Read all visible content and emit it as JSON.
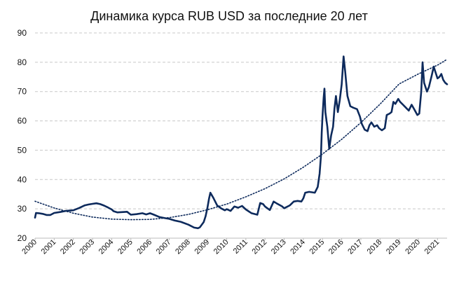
{
  "chart_data": {
    "type": "line",
    "title": "Динамика курса RUB USD за последние 20 лет",
    "xlabel": "",
    "ylabel": "",
    "ylim": [
      20,
      90
    ],
    "yticks": [
      "20",
      "30",
      "40",
      "50",
      "60",
      "70",
      "80",
      "90"
    ],
    "xlim": [
      2000,
      2021.5
    ],
    "xticks": [
      "2000",
      "2001",
      "2002",
      "2003",
      "2004",
      "2005",
      "2006",
      "2007",
      "2008",
      "2009",
      "2010",
      "2011",
      "2012",
      "2013",
      "2014",
      "2015",
      "2016",
      "2017",
      "2018",
      "2019",
      "2020",
      "2021"
    ],
    "grid": true,
    "legend": "none",
    "colors": {
      "series": "#0d2a5c",
      "trend": "#0d2a5c",
      "grid": "#c8c8c8"
    },
    "series": [
      {
        "style": "solid",
        "points": [
          [
            2000.0,
            27.0
          ],
          [
            2000.05,
            28.6
          ],
          [
            2000.2,
            28.5
          ],
          [
            2000.4,
            28.3
          ],
          [
            2000.6,
            27.9
          ],
          [
            2000.8,
            27.9
          ],
          [
            2001.0,
            28.6
          ],
          [
            2001.3,
            28.9
          ],
          [
            2001.6,
            29.3
          ],
          [
            2002.0,
            29.5
          ],
          [
            2002.3,
            30.3
          ],
          [
            2002.6,
            31.2
          ],
          [
            2002.8,
            31.5
          ],
          [
            2003.0,
            31.7
          ],
          [
            2003.2,
            31.9
          ],
          [
            2003.4,
            31.6
          ],
          [
            2003.6,
            31.1
          ],
          [
            2003.8,
            30.5
          ],
          [
            2004.0,
            29.8
          ],
          [
            2004.1,
            29.2
          ],
          [
            2004.3,
            28.8
          ],
          [
            2004.6,
            28.9
          ],
          [
            2004.8,
            29.0
          ],
          [
            2005.0,
            28.0
          ],
          [
            2005.3,
            28.2
          ],
          [
            2005.6,
            28.5
          ],
          [
            2005.8,
            28.1
          ],
          [
            2006.0,
            28.5
          ],
          [
            2006.2,
            28.0
          ],
          [
            2006.5,
            27.2
          ],
          [
            2006.8,
            26.8
          ],
          [
            2007.0,
            26.6
          ],
          [
            2007.3,
            26.0
          ],
          [
            2007.6,
            25.6
          ],
          [
            2008.0,
            24.6
          ],
          [
            2008.3,
            23.6
          ],
          [
            2008.5,
            23.4
          ],
          [
            2008.6,
            23.7
          ],
          [
            2008.8,
            25.5
          ],
          [
            2008.9,
            27.5
          ],
          [
            2009.0,
            30.5
          ],
          [
            2009.08,
            33.5
          ],
          [
            2009.15,
            35.5
          ],
          [
            2009.3,
            33.8
          ],
          [
            2009.5,
            31.2
          ],
          [
            2009.7,
            30.2
          ],
          [
            2009.9,
            29.5
          ],
          [
            2010.0,
            29.9
          ],
          [
            2010.2,
            29.3
          ],
          [
            2010.4,
            30.8
          ],
          [
            2010.6,
            30.4
          ],
          [
            2010.8,
            31.0
          ],
          [
            2011.0,
            29.8
          ],
          [
            2011.3,
            28.5
          ],
          [
            2011.6,
            28.0
          ],
          [
            2011.75,
            32.0
          ],
          [
            2011.9,
            31.6
          ],
          [
            2012.0,
            30.8
          ],
          [
            2012.25,
            29.6
          ],
          [
            2012.45,
            32.5
          ],
          [
            2012.6,
            31.9
          ],
          [
            2012.9,
            30.8
          ],
          [
            2013.0,
            30.2
          ],
          [
            2013.3,
            31.2
          ],
          [
            2013.5,
            32.5
          ],
          [
            2013.7,
            32.7
          ],
          [
            2013.9,
            32.5
          ],
          [
            2014.0,
            33.6
          ],
          [
            2014.1,
            35.5
          ],
          [
            2014.3,
            35.8
          ],
          [
            2014.6,
            35.5
          ],
          [
            2014.75,
            37.5
          ],
          [
            2014.85,
            42.0
          ],
          [
            2014.92,
            48.0
          ],
          [
            2014.96,
            56.0
          ],
          [
            2015.0,
            61.5
          ],
          [
            2015.06,
            68.0
          ],
          [
            2015.1,
            71.0
          ],
          [
            2015.15,
            63.0
          ],
          [
            2015.25,
            58.0
          ],
          [
            2015.35,
            50.5
          ],
          [
            2015.45,
            55.0
          ],
          [
            2015.55,
            58.0
          ],
          [
            2015.62,
            64.0
          ],
          [
            2015.7,
            68.5
          ],
          [
            2015.8,
            63.0
          ],
          [
            2015.9,
            67.0
          ],
          [
            2016.0,
            72.5
          ],
          [
            2016.05,
            77.0
          ],
          [
            2016.1,
            82.0
          ],
          [
            2016.18,
            77.0
          ],
          [
            2016.3,
            68.5
          ],
          [
            2016.45,
            65.0
          ],
          [
            2016.6,
            64.5
          ],
          [
            2016.8,
            64.0
          ],
          [
            2016.95,
            61.5
          ],
          [
            2017.05,
            59.0
          ],
          [
            2017.2,
            57.0
          ],
          [
            2017.35,
            56.5
          ],
          [
            2017.45,
            58.5
          ],
          [
            2017.55,
            59.5
          ],
          [
            2017.7,
            58.0
          ],
          [
            2017.85,
            58.5
          ],
          [
            2017.95,
            57.5
          ],
          [
            2018.1,
            56.8
          ],
          [
            2018.25,
            57.5
          ],
          [
            2018.35,
            62.0
          ],
          [
            2018.5,
            62.5
          ],
          [
            2018.6,
            63.0
          ],
          [
            2018.7,
            66.5
          ],
          [
            2018.8,
            65.8
          ],
          [
            2018.95,
            67.5
          ],
          [
            2019.05,
            66.5
          ],
          [
            2019.2,
            65.5
          ],
          [
            2019.35,
            64.5
          ],
          [
            2019.5,
            63.5
          ],
          [
            2019.65,
            65.5
          ],
          [
            2019.8,
            63.8
          ],
          [
            2019.95,
            62.0
          ],
          [
            2020.05,
            62.5
          ],
          [
            2020.15,
            70.0
          ],
          [
            2020.22,
            80.0
          ],
          [
            2020.3,
            73.0
          ],
          [
            2020.45,
            70.0
          ],
          [
            2020.55,
            71.5
          ],
          [
            2020.7,
            75.5
          ],
          [
            2020.8,
            78.5
          ],
          [
            2020.9,
            76.5
          ],
          [
            2021.0,
            74.5
          ],
          [
            2021.1,
            75.0
          ],
          [
            2021.2,
            76.0
          ],
          [
            2021.3,
            74.0
          ],
          [
            2021.4,
            73.0
          ],
          [
            2021.5,
            72.5
          ]
        ]
      },
      {
        "style": "dotted",
        "points": [
          [
            2000.0,
            32.6
          ],
          [
            2001.0,
            30.3
          ],
          [
            2002.0,
            28.5
          ],
          [
            2003.0,
            27.2
          ],
          [
            2004.0,
            26.5
          ],
          [
            2005.0,
            26.3
          ],
          [
            2006.0,
            26.4
          ],
          [
            2007.0,
            27.0
          ],
          [
            2008.0,
            28.1
          ],
          [
            2009.0,
            29.7
          ],
          [
            2010.0,
            31.6
          ],
          [
            2011.0,
            34.1
          ],
          [
            2012.0,
            36.9
          ],
          [
            2013.0,
            40.2
          ],
          [
            2014.0,
            44.2
          ],
          [
            2015.0,
            48.7
          ],
          [
            2016.0,
            53.7
          ],
          [
            2017.0,
            59.4
          ],
          [
            2018.0,
            65.7
          ],
          [
            2019.0,
            72.6
          ],
          [
            2020.0,
            76.0
          ],
          [
            2021.0,
            79.0
          ],
          [
            2021.5,
            81.0
          ]
        ]
      }
    ]
  }
}
